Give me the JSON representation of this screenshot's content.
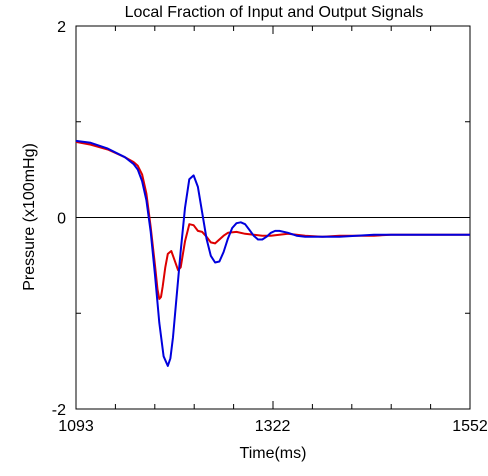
{
  "chart_data": {
    "type": "line",
    "title": "Local Fraction of Input and Output Signals",
    "xlabel": "Time(ms)",
    "ylabel": "Pressure (x100mHg)",
    "xlim": [
      1093,
      1552
    ],
    "ylim": [
      -2,
      2
    ],
    "x_ticks": [
      1093,
      1322,
      1552
    ],
    "x_tick_labels": [
      "1093",
      "1322",
      "1552"
    ],
    "y_ticks": [
      2,
      0,
      -2
    ],
    "y_tick_labels": [
      "2",
      "0",
      "-2"
    ],
    "zero_line": true,
    "grid": false,
    "legend": "none",
    "series": [
      {
        "color": "#dd0000",
        "x": [
          1093,
          1110,
          1130,
          1150,
          1160,
          1165,
          1170,
          1175,
          1180,
          1185,
          1188,
          1190,
          1192,
          1194,
          1197,
          1200,
          1204,
          1208,
          1212,
          1215,
          1220,
          1225,
          1230,
          1235,
          1240,
          1245,
          1250,
          1255,
          1260,
          1265,
          1270,
          1280,
          1290,
          1300,
          1310,
          1320,
          1330,
          1340,
          1350,
          1360,
          1380,
          1400,
          1420,
          1440,
          1460,
          1480,
          1500,
          1520,
          1540,
          1552
        ],
        "y": [
          0.79,
          0.76,
          0.71,
          0.63,
          0.58,
          0.54,
          0.45,
          0.25,
          -0.1,
          -0.5,
          -0.75,
          -0.85,
          -0.83,
          -0.72,
          -0.52,
          -0.38,
          -0.35,
          -0.45,
          -0.55,
          -0.52,
          -0.25,
          -0.07,
          -0.08,
          -0.14,
          -0.15,
          -0.2,
          -0.26,
          -0.27,
          -0.23,
          -0.19,
          -0.16,
          -0.15,
          -0.17,
          -0.18,
          -0.19,
          -0.19,
          -0.18,
          -0.17,
          -0.18,
          -0.19,
          -0.2,
          -0.19,
          -0.19,
          -0.19,
          -0.18,
          -0.18,
          -0.18,
          -0.18,
          -0.18,
          -0.18
        ]
      },
      {
        "color": "#0000dd",
        "x": [
          1093,
          1110,
          1130,
          1150,
          1160,
          1165,
          1170,
          1175,
          1180,
          1185,
          1190,
          1195,
          1200,
          1203,
          1206,
          1210,
          1215,
          1220,
          1225,
          1230,
          1235,
          1240,
          1245,
          1250,
          1255,
          1260,
          1265,
          1270,
          1275,
          1280,
          1285,
          1290,
          1295,
          1300,
          1305,
          1310,
          1315,
          1320,
          1325,
          1330,
          1340,
          1350,
          1360,
          1380,
          1400,
          1420,
          1440,
          1460,
          1480,
          1500,
          1520,
          1540,
          1552
        ],
        "y": [
          0.8,
          0.78,
          0.72,
          0.63,
          0.56,
          0.5,
          0.38,
          0.18,
          -0.15,
          -0.6,
          -1.1,
          -1.45,
          -1.55,
          -1.47,
          -1.25,
          -0.85,
          -0.35,
          0.1,
          0.4,
          0.44,
          0.32,
          0.05,
          -0.22,
          -0.4,
          -0.47,
          -0.46,
          -0.36,
          -0.22,
          -0.11,
          -0.06,
          -0.05,
          -0.07,
          -0.13,
          -0.19,
          -0.23,
          -0.23,
          -0.2,
          -0.16,
          -0.14,
          -0.14,
          -0.16,
          -0.19,
          -0.2,
          -0.2,
          -0.2,
          -0.19,
          -0.18,
          -0.18,
          -0.18,
          -0.18,
          -0.18,
          -0.18,
          -0.18
        ]
      }
    ]
  }
}
